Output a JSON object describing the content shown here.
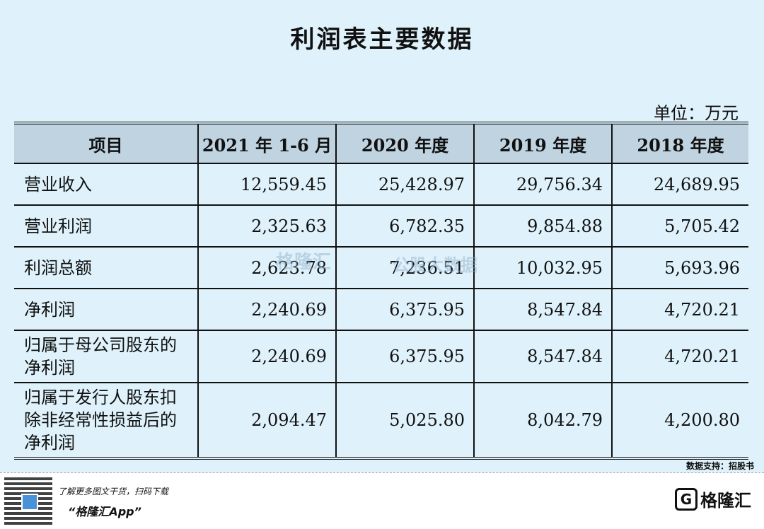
{
  "title": "利润表主要数据",
  "unit": "单位：万元",
  "table": {
    "headers": [
      "项目",
      "2021 年 1-6 月",
      "2020 年度",
      "2019 年度",
      "2018 年度"
    ],
    "rows": [
      {
        "label": "营业收入",
        "values": [
          "12,559.45",
          "25,428.97",
          "29,756.34",
          "24,689.95"
        ]
      },
      {
        "label": "营业利润",
        "values": [
          "2,325.63",
          "6,782.35",
          "9,854.88",
          "5,705.42"
        ]
      },
      {
        "label": "利润总额",
        "values": [
          "2,623.78",
          "7,236.51",
          "10,032.95",
          "5,693.96"
        ]
      },
      {
        "label": "净利润",
        "values": [
          "2,240.69",
          "6,375.95",
          "8,547.84",
          "4,720.21"
        ]
      },
      {
        "label": "归属于母公司股东的净利润",
        "values": [
          "2,240.69",
          "6,375.95",
          "8,547.84",
          "4,720.21"
        ]
      },
      {
        "label": "归属于发行人股东扣除非经常性损益后的净利润",
        "values": [
          "2,094.47",
          "5,025.80",
          "8,042.79",
          "4,200.80"
        ]
      }
    ]
  },
  "watermark": {
    "left": "格隆汇",
    "right": "公股大数据"
  },
  "source": "数据支持：招股书",
  "footer": {
    "promo_line1": "了解更多图文干货，扫码下载",
    "promo_line2": "“格隆汇App”",
    "logo_text": "格隆汇"
  }
}
